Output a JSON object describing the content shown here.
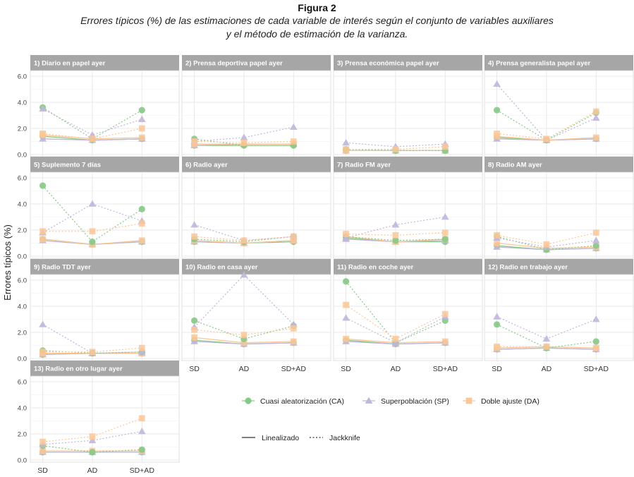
{
  "figure": {
    "label": "Figura 2",
    "caption_line1": "Errores típicos (%) de las estimaciones de cada variable de interés según el conjunto de variables auxiliares",
    "caption_line2": "y el método de estimación de la varianza."
  },
  "chart_data": {
    "type": "line",
    "facets": true,
    "ylabel": "Errores típicos (%)",
    "xlabel": "",
    "categories": [
      "SD",
      "AD",
      "SD+AD"
    ],
    "ylim": [
      0,
      6
    ],
    "yticks": [
      "0.0",
      "2.0",
      "4.0",
      "6.0"
    ],
    "grid": true,
    "legend_position": "bottom-right",
    "series_styles": [
      {
        "key": "CA",
        "name": "Cuasi aleatorización (CA)",
        "color": "#86c986",
        "marker": "circle"
      },
      {
        "key": "SP",
        "name": "Superpoblación (SP)",
        "color": "#c0b6dc",
        "marker": "triangle"
      },
      {
        "key": "DA",
        "name": "Doble ajuste (DA)",
        "color": "#fbc796",
        "marker": "square"
      }
    ],
    "line_types": [
      {
        "key": "lin",
        "name": "Linealizado",
        "dash": "solid"
      },
      {
        "key": "jk",
        "name": "Jackknife",
        "dash": "dotted"
      }
    ],
    "panels": [
      {
        "title": "1) Diario en papel ayer",
        "lin": {
          "CA": [
            1.4,
            1.1,
            1.2
          ],
          "SP": [
            1.2,
            1.1,
            1.2
          ],
          "DA": [
            1.5,
            1.2,
            1.3
          ]
        },
        "jk": {
          "CA": [
            3.6,
            1.2,
            3.4
          ],
          "SP": [
            3.5,
            1.5,
            2.7
          ],
          "DA": [
            1.6,
            1.2,
            2.0
          ]
        }
      },
      {
        "title": "2) Prensa deportiva papel ayer",
        "lin": {
          "CA": [
            0.7,
            0.7,
            0.7
          ],
          "SP": [
            0.7,
            0.8,
            0.8
          ],
          "DA": [
            0.8,
            0.8,
            0.8
          ]
        },
        "jk": {
          "CA": [
            1.2,
            0.7,
            0.7
          ],
          "SP": [
            1.0,
            1.3,
            2.1
          ],
          "DA": [
            1.0,
            0.9,
            1.0
          ]
        }
      },
      {
        "title": "3) Prensa económica papel ayer",
        "lin": {
          "CA": [
            0.3,
            0.3,
            0.3
          ],
          "SP": [
            0.3,
            0.3,
            0.3
          ],
          "DA": [
            0.3,
            0.3,
            0.3
          ]
        },
        "jk": {
          "CA": [
            0.4,
            0.3,
            0.3
          ],
          "SP": [
            0.9,
            0.6,
            0.8
          ],
          "DA": [
            0.4,
            0.4,
            0.6
          ]
        }
      },
      {
        "title": "4) Prensa generalista papel ayer",
        "lin": {
          "CA": [
            1.3,
            1.1,
            1.2
          ],
          "SP": [
            1.2,
            1.1,
            1.2
          ],
          "DA": [
            1.4,
            1.1,
            1.3
          ]
        },
        "jk": {
          "CA": [
            3.4,
            1.1,
            3.2
          ],
          "SP": [
            5.4,
            1.1,
            2.8
          ],
          "DA": [
            1.6,
            1.2,
            3.3
          ]
        }
      },
      {
        "title": "5) Suplemento 7 días",
        "lin": {
          "CA": [
            1.3,
            0.9,
            1.1
          ],
          "SP": [
            1.2,
            0.9,
            1.1
          ],
          "DA": [
            1.3,
            0.9,
            1.2
          ]
        },
        "jk": {
          "CA": [
            5.4,
            1.1,
            3.6
          ],
          "SP": [
            1.8,
            4.0,
            2.7
          ],
          "DA": [
            1.9,
            1.9,
            2.5
          ]
        }
      },
      {
        "title": "6) Radio ayer",
        "lin": {
          "CA": [
            1.1,
            1.0,
            1.1
          ],
          "SP": [
            1.1,
            1.0,
            1.2
          ],
          "DA": [
            1.2,
            1.0,
            1.2
          ]
        },
        "jk": {
          "CA": [
            1.3,
            1.1,
            1.5
          ],
          "SP": [
            2.4,
            1.2,
            1.5
          ],
          "DA": [
            1.5,
            1.2,
            1.5
          ]
        }
      },
      {
        "title": "7) Radio FM ayer",
        "lin": {
          "CA": [
            1.4,
            1.1,
            1.1
          ],
          "SP": [
            1.3,
            1.1,
            1.2
          ],
          "DA": [
            1.5,
            1.1,
            1.3
          ]
        },
        "jk": {
          "CA": [
            1.5,
            1.2,
            1.3
          ],
          "SP": [
            1.4,
            2.4,
            3.0
          ],
          "DA": [
            1.7,
            1.6,
            1.8
          ]
        }
      },
      {
        "title": "8) Radio AM ayer",
        "lin": {
          "CA": [
            0.8,
            0.5,
            0.6
          ],
          "SP": [
            0.7,
            0.5,
            0.6
          ],
          "DA": [
            1.0,
            0.6,
            0.7
          ]
        },
        "jk": {
          "CA": [
            1.5,
            0.5,
            0.8
          ],
          "SP": [
            1.4,
            0.7,
            1.2
          ],
          "DA": [
            1.6,
            0.9,
            1.8
          ]
        }
      },
      {
        "title": "9) Radio TDT ayer",
        "lin": {
          "CA": [
            0.3,
            0.4,
            0.4
          ],
          "SP": [
            0.3,
            0.4,
            0.4
          ],
          "DA": [
            0.4,
            0.4,
            0.4
          ]
        },
        "jk": {
          "CA": [
            0.6,
            0.4,
            0.5
          ],
          "SP": [
            2.6,
            0.4,
            0.5
          ],
          "DA": [
            0.5,
            0.5,
            0.8
          ]
        }
      },
      {
        "title": "10) Radio en casa ayer",
        "lin": {
          "CA": [
            1.4,
            1.1,
            1.2
          ],
          "SP": [
            1.3,
            1.1,
            1.2
          ],
          "DA": [
            1.6,
            1.2,
            1.3
          ]
        },
        "jk": {
          "CA": [
            2.9,
            1.5,
            2.5
          ],
          "SP": [
            2.4,
            6.4,
            2.6
          ],
          "DA": [
            2.2,
            1.8,
            2.3
          ]
        }
      },
      {
        "title": "11) Radio en coche ayer",
        "lin": {
          "CA": [
            1.4,
            1.1,
            1.2
          ],
          "SP": [
            1.3,
            1.1,
            1.2
          ],
          "DA": [
            1.5,
            1.2,
            1.3
          ]
        },
        "jk": {
          "CA": [
            5.9,
            1.2,
            2.9
          ],
          "SP": [
            3.1,
            1.2,
            3.2
          ],
          "DA": [
            4.1,
            1.5,
            3.4
          ]
        }
      },
      {
        "title": "12) Radio en trabajo ayer",
        "lin": {
          "CA": [
            0.7,
            0.8,
            0.7
          ],
          "SP": [
            0.7,
            0.8,
            0.7
          ],
          "DA": [
            0.8,
            0.9,
            0.8
          ]
        },
        "jk": {
          "CA": [
            2.6,
            0.8,
            1.3
          ],
          "SP": [
            3.2,
            1.5,
            3.0
          ],
          "DA": [
            0.9,
            0.9,
            0.8
          ]
        }
      },
      {
        "title": "13) Radio en otro lugar ayer",
        "lin": {
          "CA": [
            0.6,
            0.6,
            0.6
          ],
          "SP": [
            0.6,
            0.6,
            0.6
          ],
          "DA": [
            0.7,
            0.7,
            0.7
          ]
        },
        "jk": {
          "CA": [
            1.1,
            0.6,
            0.8
          ],
          "SP": [
            1.2,
            1.5,
            2.2
          ],
          "DA": [
            1.4,
            1.8,
            3.2
          ]
        }
      }
    ]
  }
}
